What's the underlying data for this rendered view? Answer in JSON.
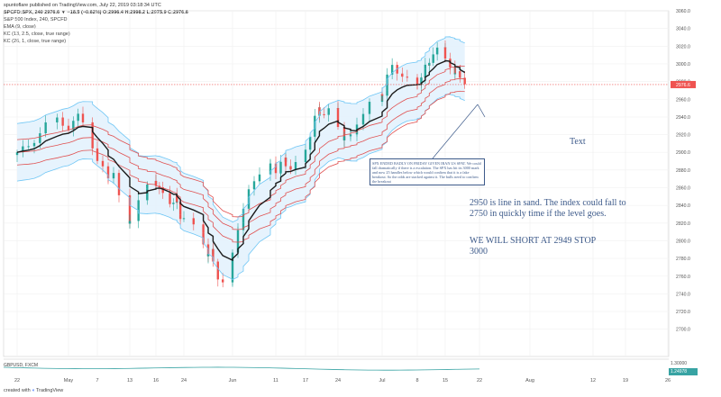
{
  "header": {
    "published": "spuntoflare published on TradingView.com, July 22, 2019 03:18:34 UTC",
    "symbol_line": "SPCFD:SPX, 240  2976.6 ▼ −18.5 (−0.62%)  O:2996.4  H:2998.2  L:2975.9  C:2976.6"
  },
  "indicators": [
    "S&P 500 Index, 240, SPCFD",
    "EMA (9, close)",
    "KC (13, 2.5, close, true range)",
    "KC (26, 1, close, true range)"
  ],
  "lower_pane": {
    "label": "GBPUSD, FXCM",
    "price_tick": "1.30000",
    "last_value": "1.24978"
  },
  "footer": {
    "created_with": "created with",
    "brand": "TradingView"
  },
  "annotations": {
    "text_placeholder": "Text",
    "box_text": "SPX ENDED BADLY ON FRIDAY GIVEN IRAN US SPAT. We could fall dramatically if there is a escalation. The SPX has hit its 3000 mark and now 25 handles below which would confirm that it is a fake breakout. So the odds are stacked against it. The bulls need to confirm the breakout",
    "line_in_sand": "2950 is line in sand. The index could fall to 2750 in quickly time if the level goes.",
    "short_plan": "WE WILL SHORT AT 2949 STOP 3000"
  },
  "colors": {
    "up": "#26a69a",
    "down": "#ef5350",
    "ema": "#1b1b1b",
    "kc_outer": "#6ec6f5",
    "kc_fill": "#e3f2fd",
    "kc_inner": "#e05050",
    "last_price": "#ef5350",
    "lower_line": "#37a3a3"
  },
  "chart_data": {
    "type": "candlestick",
    "symbol": "SPCFD:SPX",
    "interval": "240",
    "ylim": [
      2700,
      3060
    ],
    "y_ticks": [
      2700,
      2720,
      2740,
      2760,
      2780,
      2800,
      2820,
      2840,
      2860,
      2880,
      2900,
      2920,
      2940,
      2960,
      2980,
      3000,
      3020,
      3040,
      3060
    ],
    "last_price_label": "2976.6",
    "x_ticks": [
      "22",
      "May",
      "7",
      "13",
      "16",
      "24",
      "Jun",
      "11",
      "17",
      "24",
      "Jul",
      "8",
      "15",
      "22",
      "Aug",
      "12",
      "19",
      "26"
    ],
    "x_tick_dates": [
      "2019-04-22",
      "2019-05-01",
      "2019-05-07",
      "2019-05-13",
      "2019-05-16",
      "2019-05-24",
      "2019-06-03",
      "2019-06-11",
      "2019-06-17",
      "2019-06-24",
      "2019-07-01",
      "2019-07-08",
      "2019-07-15",
      "2019-07-22",
      "2019-08-01",
      "2019-08-12",
      "2019-08-19",
      "2019-08-26"
    ],
    "close_path": [
      [
        "2019-04-22",
        2900
      ],
      [
        "2019-04-24",
        2905
      ],
      [
        "2019-04-26",
        2925
      ],
      [
        "2019-04-29",
        2935
      ],
      [
        "2019-05-01",
        2930
      ],
      [
        "2019-05-03",
        2940
      ],
      [
        "2019-05-06",
        2925
      ],
      [
        "2019-05-07",
        2890
      ],
      [
        "2019-05-09",
        2870
      ],
      [
        "2019-05-10",
        2880
      ],
      [
        "2019-05-13",
        2815
      ],
      [
        "2019-05-14",
        2835
      ],
      [
        "2019-05-15",
        2855
      ],
      [
        "2019-05-16",
        2870
      ],
      [
        "2019-05-17",
        2860
      ],
      [
        "2019-05-20",
        2840
      ],
      [
        "2019-05-22",
        2855
      ],
      [
        "2019-05-23",
        2825
      ],
      [
        "2019-05-24",
        2830
      ],
      [
        "2019-05-28",
        2805
      ],
      [
        "2019-05-29",
        2785
      ],
      [
        "2019-05-30",
        2790
      ],
      [
        "2019-05-31",
        2755
      ],
      [
        "2019-06-03",
        2760
      ],
      [
        "2019-06-04",
        2805
      ],
      [
        "2019-06-05",
        2825
      ],
      [
        "2019-06-06",
        2845
      ],
      [
        "2019-06-07",
        2870
      ],
      [
        "2019-06-10",
        2885
      ],
      [
        "2019-06-11",
        2882
      ],
      [
        "2019-06-12",
        2880
      ],
      [
        "2019-06-13",
        2890
      ],
      [
        "2019-06-14",
        2885
      ],
      [
        "2019-06-17",
        2890
      ],
      [
        "2019-06-18",
        2915
      ],
      [
        "2019-06-19",
        2925
      ],
      [
        "2019-06-20",
        2950
      ],
      [
        "2019-06-21",
        2945
      ],
      [
        "2019-06-24",
        2946
      ],
      [
        "2019-06-25",
        2918
      ],
      [
        "2019-06-26",
        2915
      ],
      [
        "2019-06-27",
        2925
      ],
      [
        "2019-06-28",
        2942
      ],
      [
        "2019-07-01",
        2965
      ],
      [
        "2019-07-02",
        2972
      ],
      [
        "2019-07-03",
        2995
      ],
      [
        "2019-07-05",
        2990
      ],
      [
        "2019-07-08",
        2975
      ],
      [
        "2019-07-09",
        2980
      ],
      [
        "2019-07-10",
        2993
      ],
      [
        "2019-07-11",
        2998
      ],
      [
        "2019-07-12",
        3013
      ],
      [
        "2019-07-15",
        3015
      ],
      [
        "2019-07-16",
        3004
      ],
      [
        "2019-07-17",
        2984
      ],
      [
        "2019-07-18",
        2995
      ],
      [
        "2019-07-19",
        2977
      ]
    ]
  }
}
